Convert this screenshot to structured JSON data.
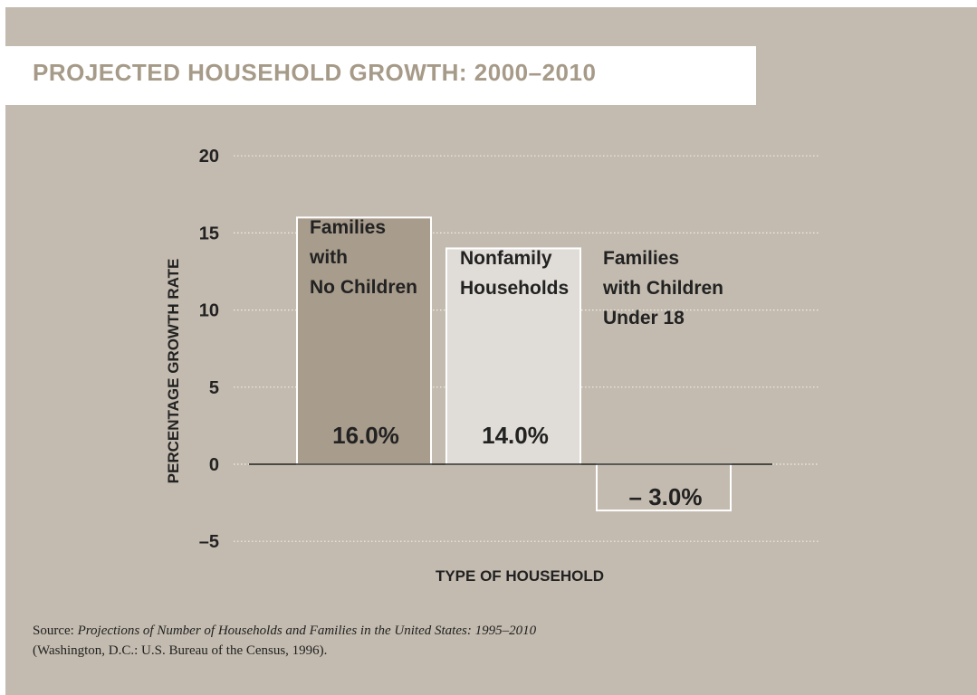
{
  "colors": {
    "background": "#c3bbaf",
    "title_box": "#ffffff",
    "title_text": "#a69a88",
    "bar_families_no_children": "#a89c8c",
    "bar_nonfamily": "#e0dcd7",
    "bar_families_with_children": "#c3bbaf",
    "bar_border": "#ffffff",
    "gridline": "#f2eee8",
    "zero_line": "#222222",
    "text": "#222222"
  },
  "chart_data": {
    "type": "bar",
    "title": "PROJECTED HOUSEHOLD GROWTH: 2000–2010",
    "xlabel": "TYPE OF HOUSEHOLD",
    "ylabel": "PERCENTAGE GROWTH RATE",
    "ylim": [
      -5,
      20
    ],
    "yticks": [
      20,
      15,
      10,
      5,
      0,
      -5
    ],
    "ytick_labels": [
      "20",
      "15",
      "10",
      "5",
      "0",
      "–5"
    ],
    "grid": true,
    "categories": [
      [
        "Families",
        "with",
        "No Children"
      ],
      [
        "Nonfamily",
        "Households"
      ],
      [
        "Families",
        "with Children",
        "Under 18"
      ]
    ],
    "values": [
      16.0,
      14.0,
      -3.0
    ],
    "data_labels": [
      "16.0%",
      "14.0%",
      "– 3.0%"
    ]
  },
  "source": {
    "prefix": "Source: ",
    "title": "Projections of Number of Households and Families in the United States: 1995–2010",
    "publisher": "(Washington, D.C.: U.S. Bureau of the Census, 1996)."
  }
}
